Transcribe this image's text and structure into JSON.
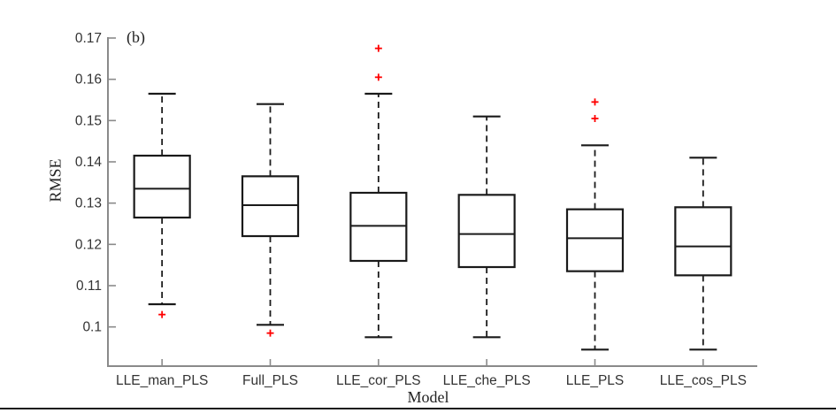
{
  "figure": {
    "panel_label": "(b)",
    "xlabel": "Model",
    "ylabel": "RMSE"
  },
  "chart_data": {
    "type": "boxplot",
    "title": "",
    "panel_label": "(b)",
    "xlabel": "Model",
    "ylabel": "RMSE",
    "grid": false,
    "ylim": [
      0.0905,
      0.17
    ],
    "yticks": [
      0.1,
      0.11,
      0.12,
      0.13,
      0.14,
      0.15,
      0.16,
      0.17
    ],
    "ytick_labels": [
      "0.1",
      "0.11",
      "0.12",
      "0.13",
      "0.14",
      "0.15",
      "0.16",
      "0.17"
    ],
    "categories": [
      "LLE_man_PLS",
      "Full_PLS",
      "LLE_cor_PLS",
      "LLE_che_PLS",
      "LLE_PLS",
      "LLE_cos_PLS"
    ],
    "series": [
      {
        "name": "LLE_man_PLS",
        "whisker_low": 0.1055,
        "q1": 0.1265,
        "median": 0.1335,
        "q3": 0.1415,
        "whisker_high": 0.1565,
        "outliers": [
          0.103
        ]
      },
      {
        "name": "Full_PLS",
        "whisker_low": 0.1005,
        "q1": 0.122,
        "median": 0.1295,
        "q3": 0.1365,
        "whisker_high": 0.154,
        "outliers": [
          0.0985
        ]
      },
      {
        "name": "LLE_cor_PLS",
        "whisker_low": 0.0975,
        "q1": 0.116,
        "median": 0.1245,
        "q3": 0.1325,
        "whisker_high": 0.1565,
        "outliers": [
          0.1605,
          0.1675
        ]
      },
      {
        "name": "LLE_che_PLS",
        "whisker_low": 0.0975,
        "q1": 0.1145,
        "median": 0.1225,
        "q3": 0.132,
        "whisker_high": 0.151,
        "outliers": []
      },
      {
        "name": "LLE_PLS",
        "whisker_low": 0.0945,
        "q1": 0.1135,
        "median": 0.1215,
        "q3": 0.1285,
        "whisker_high": 0.144,
        "outliers": [
          0.1505,
          0.1545
        ]
      },
      {
        "name": "LLE_cos_PLS",
        "whisker_low": 0.0945,
        "q1": 0.1125,
        "median": 0.1195,
        "q3": 0.129,
        "whisker_high": 0.141,
        "outliers": []
      }
    ],
    "marker": "plus",
    "legend": "none",
    "colors": {
      "box_stroke": "#1a1a1a",
      "median": "#1a1a1a",
      "whisker": "#1a1a1a",
      "outlier": "#ff0000",
      "axis": "#8a8a8a",
      "tick_label": "#333333",
      "background": "#ffffff"
    }
  }
}
